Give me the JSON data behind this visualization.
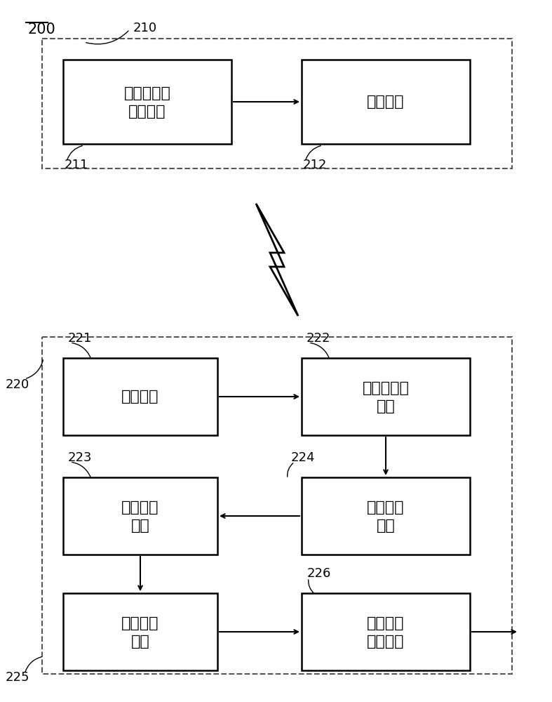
{
  "bg_color": "#ffffff",
  "label_200": "200",
  "label_210": "210",
  "label_211": "211",
  "label_212": "212",
  "label_220": "220",
  "label_221": "221",
  "label_222": "222",
  "label_223": "223",
  "label_224": "224",
  "label_225": "225",
  "label_226": "226",
  "box_210_text1": "脑电图信号",
  "box_210_text2": "测量单元",
  "box_212_text": "通讯单元",
  "box_221_text": "通讯单元",
  "box_222_text1": "信号前处理",
  "box_222_text2": "单元",
  "box_223_text1": "特征茄取",
  "box_223_text2": "单元",
  "box_224_text1": "频段筛选",
  "box_224_text2": "单元",
  "box_225_text1": "机器学习",
  "box_225_text2": "单元",
  "box_226_text1": "判读结果",
  "box_226_text2": "输出单元",
  "line_color": "#000000",
  "dash_color": "#555555",
  "font_size_box": 16,
  "font_size_label": 13
}
